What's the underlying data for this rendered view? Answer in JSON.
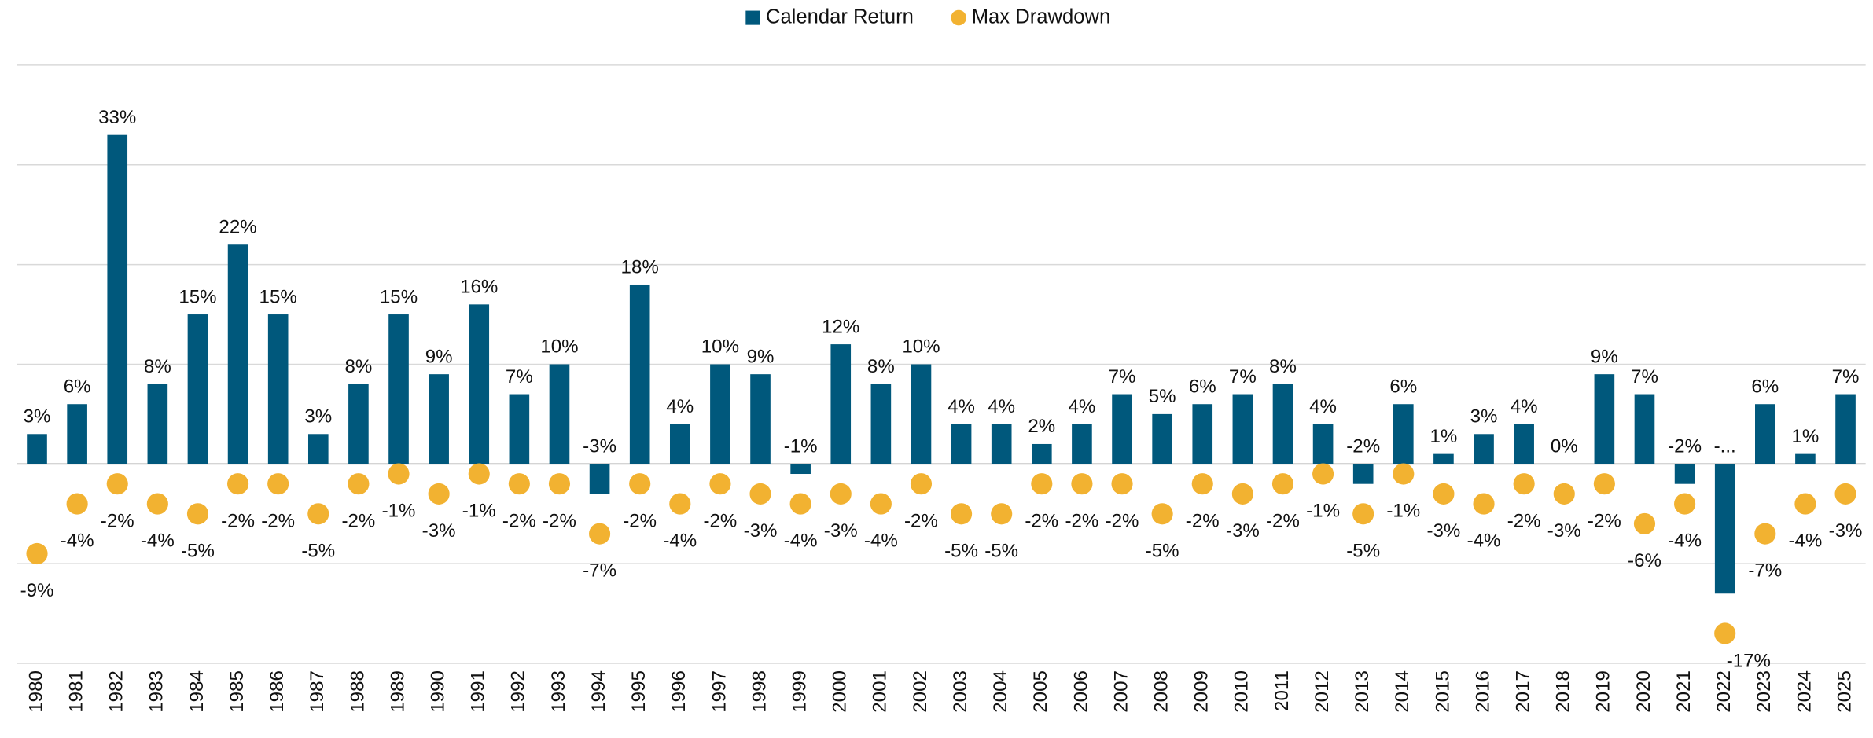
{
  "chart_data": {
    "type": "bar",
    "categories": [
      "1980",
      "1981",
      "1982",
      "1983",
      "1984",
      "1985",
      "1986",
      "1987",
      "1988",
      "1989",
      "1990",
      "1991",
      "1992",
      "1993",
      "1994",
      "1995",
      "1996",
      "1997",
      "1998",
      "1999",
      "2000",
      "2001",
      "2002",
      "2003",
      "2004",
      "2005",
      "2006",
      "2007",
      "2008",
      "2009",
      "2010",
      "2011",
      "2012",
      "2013",
      "2014",
      "2015",
      "2016",
      "2017",
      "2018",
      "2019",
      "2020",
      "2021",
      "2022",
      "2023",
      "2024",
      "2025"
    ],
    "series": [
      {
        "name": "Calendar Return",
        "type": "bar",
        "color": "#00587c",
        "values": [
          3,
          6,
          33,
          8,
          15,
          22,
          15,
          3,
          8,
          15,
          9,
          16,
          7,
          10,
          -3,
          18,
          4,
          10,
          9,
          -1,
          12,
          8,
          10,
          4,
          4,
          2,
          4,
          7,
          5,
          6,
          7,
          8,
          4,
          -2,
          6,
          1,
          3,
          4,
          0,
          9,
          7,
          -2,
          -13,
          6,
          1,
          7
        ],
        "value_labels": [
          "3%",
          "6%",
          "33%",
          "8%",
          "15%",
          "22%",
          "15%",
          "3%",
          "8%",
          "15%",
          "9%",
          "16%",
          "7%",
          "10%",
          "-3%",
          "18%",
          "4%",
          "10%",
          "9%",
          "-1%",
          "12%",
          "8%",
          "10%",
          "4%",
          "4%",
          "2%",
          "4%",
          "7%",
          "5%",
          "6%",
          "7%",
          "8%",
          "4%",
          "-2%",
          "6%",
          "1%",
          "3%",
          "4%",
          "0%",
          "9%",
          "7%",
          "-2%",
          "-...",
          "6%",
          "1%",
          "7%"
        ]
      },
      {
        "name": "Max Drawdown",
        "type": "scatter",
        "color": "#f2b231",
        "values": [
          -9,
          -4,
          -2,
          -4,
          -5,
          -2,
          -2,
          -5,
          -2,
          -1,
          -3,
          -1,
          -2,
          -2,
          -7,
          -2,
          -4,
          -2,
          -3,
          -4,
          -3,
          -4,
          -2,
          -5,
          -5,
          -2,
          -2,
          -2,
          -5,
          -2,
          -3,
          -2,
          -1,
          -5,
          -1,
          -3,
          -4,
          -2,
          -3,
          -2,
          -6,
          -4,
          -17,
          -7,
          -4,
          -3
        ],
        "value_labels": [
          "-9%",
          "-4%",
          "-2%",
          "-4%",
          "-5%",
          "-2%",
          "-2%",
          "-5%",
          "-2%",
          "-1%",
          "-3%",
          "-1%",
          "-2%",
          "-2%",
          "-7%",
          "-2%",
          "-4%",
          "-2%",
          "-3%",
          "-4%",
          "-3%",
          "-4%",
          "-2%",
          "-5%",
          "-5%",
          "-2%",
          "-2%",
          "-2%",
          "-5%",
          "-2%",
          "-3%",
          "-2%",
          "-1%",
          "-5%",
          "-1%",
          "-3%",
          "-4%",
          "-2%",
          "-3%",
          "-2%",
          "-6%",
          "-4%",
          "-17%",
          "-7%",
          "-4%",
          "-3%"
        ]
      }
    ],
    "ylim": [
      -20,
      40
    ],
    "yticks": [
      -20,
      -10,
      0,
      10,
      20,
      30,
      40
    ],
    "grid": true,
    "legend": "top"
  }
}
